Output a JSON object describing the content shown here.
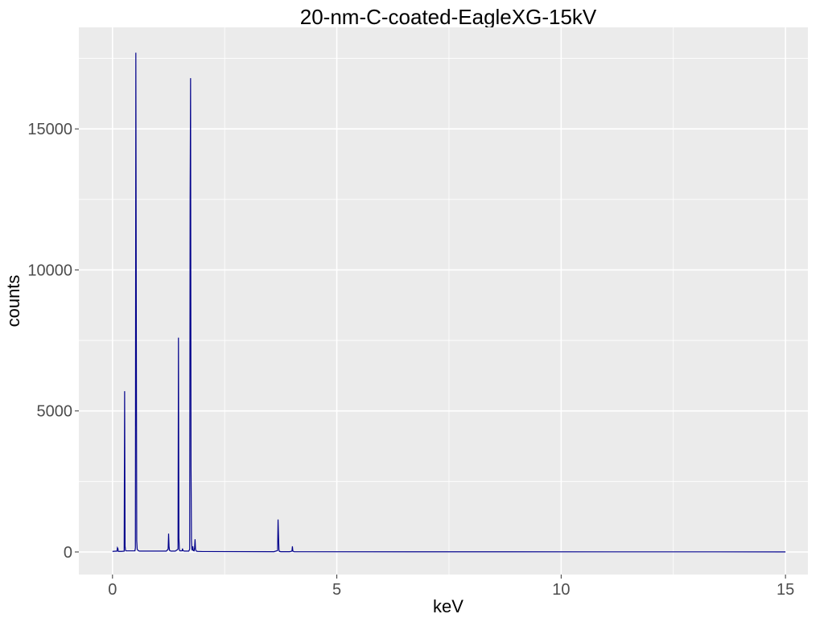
{
  "chart_data": {
    "type": "line",
    "title": "20-nm-C-coated-EagleXG-15kV",
    "xlabel": "keV",
    "ylabel": "counts",
    "xlim": [
      -0.75,
      15.5
    ],
    "ylim": [
      -800,
      18600
    ],
    "x_ticks": [
      0,
      5,
      10,
      15
    ],
    "x_tick_labels": [
      "0",
      "5",
      "10",
      "15"
    ],
    "y_ticks": [
      0,
      5000,
      10000,
      15000
    ],
    "y_tick_labels": [
      "0",
      "5000",
      "10000",
      "15000"
    ],
    "x_minor_ticks": [
      2.5,
      7.5,
      12.5
    ],
    "y_minor_ticks": [
      2500,
      7500,
      12500,
      17500
    ],
    "grid": true,
    "legend": "none",
    "colors": {
      "line": "#00008b",
      "panel": "#ebebeb",
      "grid": "#ffffff",
      "tick": "#333333"
    },
    "series": [
      {
        "x": [
          0.0,
          0.1,
          0.11,
          0.12,
          0.13,
          0.2,
          0.26,
          0.27,
          0.28,
          0.29,
          0.3,
          0.5,
          0.51,
          0.52,
          0.53,
          0.54,
          0.55,
          0.56,
          0.57,
          0.6,
          1.2,
          1.24,
          1.25,
          1.26,
          1.27,
          1.3,
          1.4,
          1.46,
          1.47,
          1.48,
          1.49,
          1.5,
          1.55,
          1.56,
          1.57,
          1.6,
          1.7,
          1.72,
          1.73,
          1.74,
          1.75,
          1.76,
          1.77,
          1.78,
          1.79,
          1.8,
          1.82,
          1.83,
          1.84,
          1.85,
          1.86,
          1.87,
          1.9,
          2.0,
          3.6,
          3.68,
          3.69,
          3.7,
          3.71,
          3.72,
          3.75,
          3.95,
          4.0,
          4.01,
          4.02,
          4.05,
          15.0
        ],
        "y": [
          20,
          30,
          150,
          120,
          20,
          20,
          30,
          5700,
          200,
          60,
          40,
          40,
          150,
          17700,
          8900,
          400,
          100,
          80,
          50,
          30,
          30,
          100,
          650,
          200,
          60,
          30,
          30,
          100,
          7600,
          500,
          100,
          40,
          40,
          120,
          50,
          30,
          30,
          100,
          12500,
          16800,
          3000,
          400,
          100,
          60,
          200,
          50,
          40,
          150,
          450,
          100,
          50,
          30,
          20,
          15,
          10,
          50,
          1150,
          600,
          80,
          20,
          10,
          10,
          30,
          200,
          30,
          8,
          3
        ]
      }
    ]
  }
}
